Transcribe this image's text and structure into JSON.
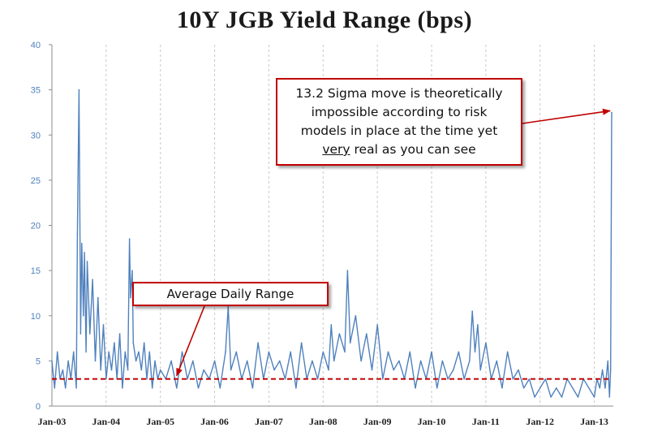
{
  "chart_data": {
    "type": "line",
    "title": "10Y JGB Yield Range (bps)",
    "xlabel": "",
    "ylabel": "",
    "ylim": [
      0,
      40
    ],
    "yticks": [
      0,
      5,
      10,
      15,
      20,
      25,
      30,
      35,
      40
    ],
    "xticks": [
      "Jan-03",
      "Jan-04",
      "Jan-05",
      "Jan-06",
      "Jan-07",
      "Jan-08",
      "Jan-09",
      "Jan-10",
      "Jan-11",
      "Jan-12",
      "Jan-13"
    ],
    "xlim": [
      2003.0,
      2013.35
    ],
    "grid": "vertical dashed",
    "legend": "none",
    "series": [
      {
        "values_description_free": true,
        "color": "#4f81bd",
        "x": [
          2003.0,
          2003.05,
          2003.1,
          2003.15,
          2003.2,
          2003.25,
          2003.3,
          2003.35,
          2003.4,
          2003.45,
          2003.47,
          2003.5,
          2003.53,
          2003.55,
          2003.58,
          2003.6,
          2003.63,
          2003.65,
          2003.7,
          2003.75,
          2003.8,
          2003.85,
          2003.9,
          2003.95,
          2004.0,
          2004.05,
          2004.1,
          2004.15,
          2004.2,
          2004.25,
          2004.3,
          2004.35,
          2004.4,
          2004.43,
          2004.45,
          2004.48,
          2004.5,
          2004.55,
          2004.6,
          2004.65,
          2004.7,
          2004.75,
          2004.8,
          2004.85,
          2004.9,
          2004.95,
          2005.0,
          2005.1,
          2005.2,
          2005.3,
          2005.4,
          2005.5,
          2005.6,
          2005.7,
          2005.8,
          2005.9,
          2006.0,
          2006.1,
          2006.2,
          2006.25,
          2006.3,
          2006.4,
          2006.5,
          2006.6,
          2006.7,
          2006.8,
          2006.9,
          2007.0,
          2007.1,
          2007.2,
          2007.3,
          2007.4,
          2007.5,
          2007.6,
          2007.7,
          2007.8,
          2007.9,
          2008.0,
          2008.1,
          2008.15,
          2008.2,
          2008.3,
          2008.4,
          2008.45,
          2008.5,
          2008.6,
          2008.7,
          2008.8,
          2008.9,
          2009.0,
          2009.1,
          2009.2,
          2009.3,
          2009.4,
          2009.5,
          2009.6,
          2009.7,
          2009.8,
          2009.9,
          2010.0,
          2010.1,
          2010.2,
          2010.3,
          2010.4,
          2010.5,
          2010.6,
          2010.7,
          2010.75,
          2010.8,
          2010.85,
          2010.9,
          2011.0,
          2011.1,
          2011.2,
          2011.3,
          2011.4,
          2011.5,
          2011.6,
          2011.7,
          2011.8,
          2011.9,
          2012.0,
          2012.1,
          2012.2,
          2012.3,
          2012.4,
          2012.5,
          2012.6,
          2012.7,
          2012.8,
          2012.9,
          2013.0,
          2013.05,
          2013.1,
          2013.15,
          2013.2,
          2013.25,
          2013.28,
          2013.3,
          2013.32
        ],
        "values": [
          5,
          2,
          6,
          3,
          4,
          2,
          5,
          3,
          6,
          2,
          19,
          35,
          8,
          18,
          10,
          17,
          6,
          16,
          8,
          14,
          5,
          12,
          4,
          9,
          3,
          6,
          4,
          7,
          3,
          8,
          2,
          6,
          4,
          18.5,
          12,
          15,
          7,
          5,
          6,
          4,
          7,
          3,
          6,
          2,
          5,
          3,
          4,
          3,
          5,
          2,
          6,
          3,
          5,
          2,
          4,
          3,
          5,
          2,
          6,
          11,
          4,
          6,
          3,
          5,
          2,
          7,
          3,
          6,
          4,
          5,
          3,
          6,
          2,
          7,
          3,
          5,
          3,
          6,
          4,
          9,
          5,
          8,
          6,
          15,
          7,
          10,
          5,
          8,
          4,
          9,
          3,
          6,
          4,
          5,
          3,
          6,
          2,
          5,
          3,
          6,
          2,
          5,
          3,
          4,
          6,
          3,
          5,
          10.5,
          6,
          9,
          4,
          7,
          3,
          5,
          2,
          6,
          3,
          4,
          2,
          3,
          1,
          2,
          3,
          1,
          2,
          1,
          3,
          2,
          1,
          3,
          2,
          1,
          3,
          2,
          4,
          2,
          5,
          1,
          4,
          32.5
        ]
      }
    ],
    "average_line": {
      "value": 3,
      "color": "#c00000"
    }
  },
  "annotations": {
    "sigma": {
      "line1": "13.2 Sigma move is theoretically",
      "line2": "impossible according to risk",
      "line3": "models in place at the time yet",
      "line4_underlined": "very",
      "line4_rest": " real as you can see",
      "target_x": 2013.32,
      "target_y": 32.5
    },
    "average": {
      "label": "Average Daily Range",
      "target_x": 2005.3,
      "target_y": 3
    }
  }
}
